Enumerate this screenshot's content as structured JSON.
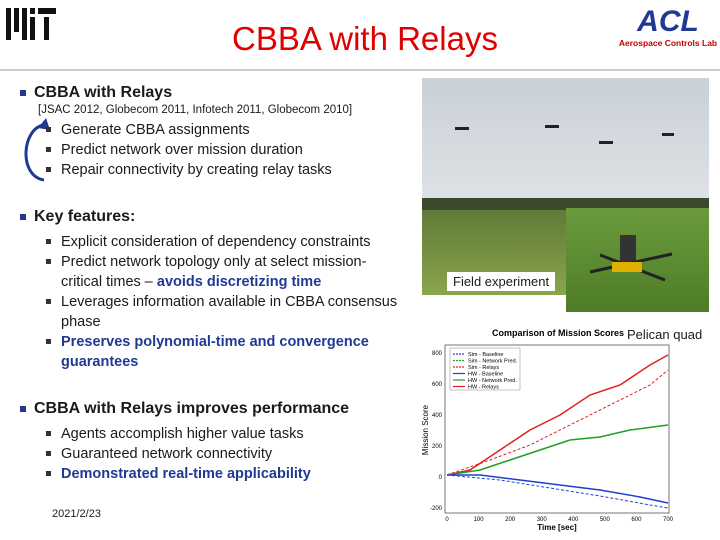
{
  "header": {
    "title": "CBBA with Relays",
    "lab_logo": "ACL",
    "lab_name": "Aerospace Controls Lab"
  },
  "sections": [
    {
      "heading": "CBBA with Relays",
      "citation": "[JSAC 2012, Globecom 2011, Infotech 2011, Globecom 2010]",
      "bullets": [
        [
          {
            "text": "Generate CBBA assignments"
          }
        ],
        [
          {
            "text": "Predict network over mission duration"
          }
        ],
        [
          {
            "text": "Repair connectivity by creating relay tasks"
          }
        ]
      ]
    },
    {
      "heading": "Key features:",
      "bullets": [
        [
          {
            "text": "Explicit consideration of dependency constraints"
          }
        ],
        [
          {
            "text": "Predict network topology only at select mission-critical times – "
          },
          {
            "text": "avoids discretizing time",
            "highlight": true
          }
        ],
        [
          {
            "text": "Leverages information available in CBBA consensus phase"
          }
        ],
        [
          {
            "text": "Preserves polynomial-time and convergence guarantees",
            "highlight": true
          }
        ]
      ]
    },
    {
      "heading": "CBBA with Relays improves performance",
      "bullets": [
        [
          {
            "text": "Agents accomplish higher value tasks"
          }
        ],
        [
          {
            "text": "Guaranteed network connectivity"
          }
        ],
        [
          {
            "text": "Demonstrated real-time applicability",
            "highlight": true
          }
        ]
      ]
    }
  ],
  "figures": {
    "field_caption": "Field experiment",
    "pelican_caption": "Pelican quad",
    "plot": {
      "title": "Comparison of Mission Scores",
      "y_label": "Mission Score",
      "x_label": "Time [sec]",
      "legend": [
        "Sim - Baseline",
        "Sim - Network Pred.",
        "Sim - Relays",
        "HW - Baseline",
        "HW - Network Pred.",
        "HW - Relays"
      ],
      "yticks": [
        800,
        600,
        400,
        200,
        0,
        -200
      ],
      "xticks": [
        0,
        100,
        200,
        300,
        400,
        500,
        600,
        700
      ]
    }
  },
  "footer": {
    "date": "2021/2/23"
  }
}
